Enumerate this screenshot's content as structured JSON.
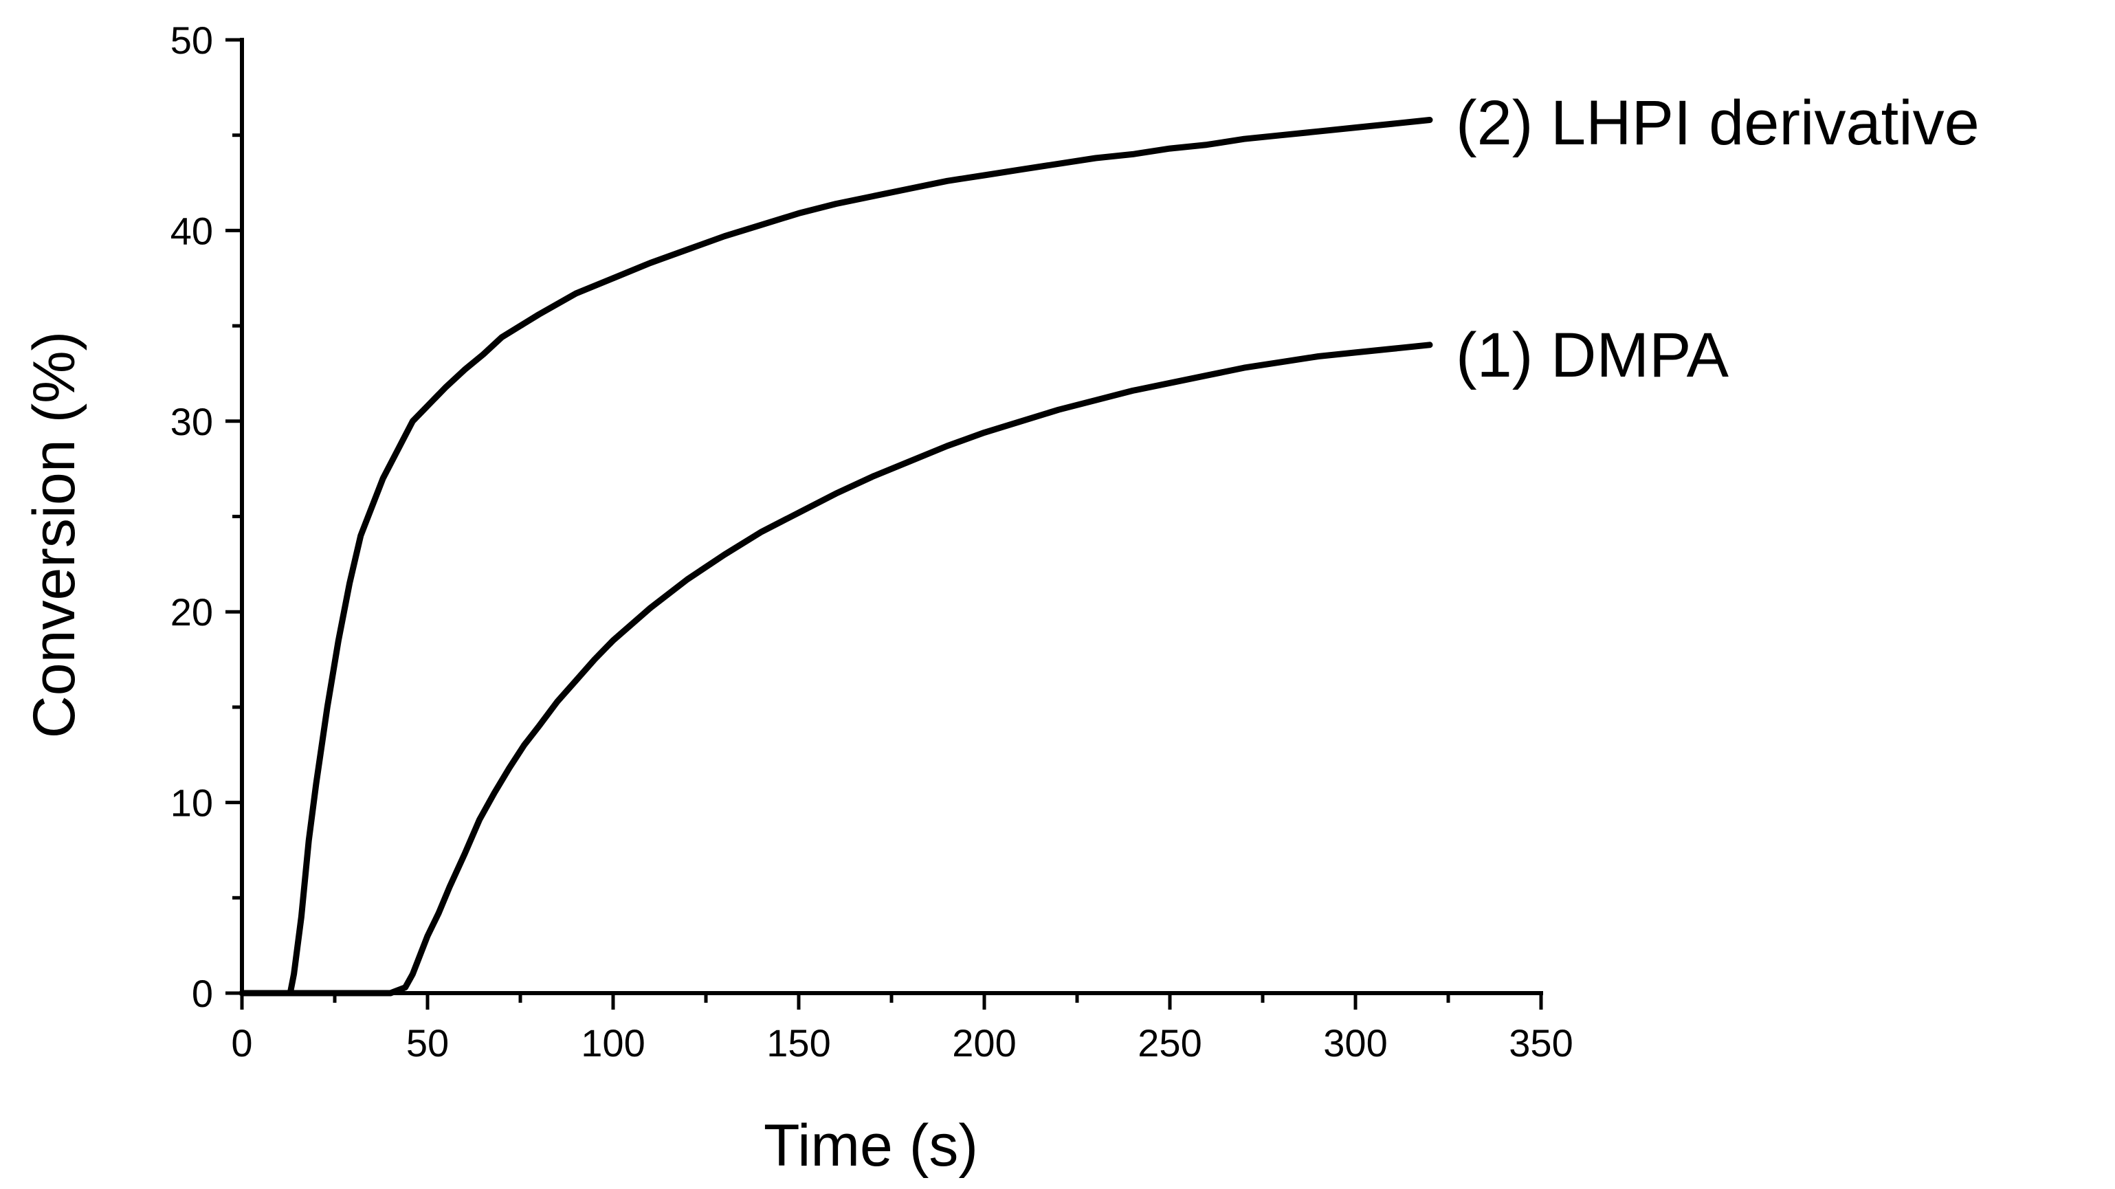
{
  "chart_data": {
    "type": "line",
    "title": "",
    "xlabel": "Time (s)",
    "ylabel": "Conversion (%)",
    "xlim": [
      0,
      350
    ],
    "ylim": [
      0,
      50
    ],
    "x_major_ticks": [
      0,
      50,
      100,
      150,
      200,
      250,
      300,
      350
    ],
    "x_tick_labels": [
      "0",
      "50",
      "100",
      "150",
      "200",
      "250",
      "300",
      "350"
    ],
    "x_minor_step": 25,
    "y_major_ticks": [
      0,
      10,
      20,
      30,
      40,
      50
    ],
    "y_tick_labels": [
      "0",
      "10",
      "20",
      "30",
      "40",
      "50"
    ],
    "y_minor_step": 5,
    "grid": false,
    "legend": "inline labels at right end of each series",
    "series": [
      {
        "name": "(2) LHPI derivative",
        "color": "#000000",
        "x": [
          0,
          5,
          10,
          13,
          14,
          16,
          18,
          20,
          23,
          26,
          29,
          32,
          35,
          38,
          42,
          46,
          50,
          55,
          60,
          65,
          70,
          75,
          80,
          90,
          100,
          110,
          120,
          130,
          140,
          150,
          160,
          170,
          180,
          190,
          200,
          210,
          220,
          230,
          240,
          250,
          260,
          270,
          280,
          290,
          300,
          310,
          320
        ],
        "y": [
          0,
          0,
          0,
          0,
          1,
          4,
          8,
          11,
          15,
          18.5,
          21.5,
          24,
          25.5,
          27,
          28.5,
          30,
          30.8,
          31.8,
          32.7,
          33.5,
          34.4,
          35,
          35.6,
          36.7,
          37.5,
          38.3,
          39,
          39.7,
          40.3,
          40.9,
          41.4,
          41.8,
          42.2,
          42.6,
          42.9,
          43.2,
          43.5,
          43.8,
          44,
          44.3,
          44.5,
          44.8,
          45,
          45.2,
          45.4,
          45.6,
          45.8
        ]
      },
      {
        "name": "(1) DMPA",
        "color": "#000000",
        "x": [
          0,
          20,
          40,
          44,
          46,
          48,
          50,
          53,
          56,
          60,
          64,
          68,
          72,
          76,
          80,
          85,
          90,
          95,
          100,
          110,
          120,
          130,
          140,
          150,
          160,
          170,
          180,
          190,
          200,
          210,
          220,
          230,
          240,
          250,
          260,
          270,
          280,
          290,
          300,
          310,
          320
        ],
        "y": [
          0,
          0,
          0,
          0.3,
          1,
          2,
          3,
          4.2,
          5.6,
          7.3,
          9.1,
          10.5,
          11.8,
          13,
          14,
          15.3,
          16.4,
          17.5,
          18.5,
          20.2,
          21.7,
          23,
          24.2,
          25.2,
          26.2,
          27.1,
          27.9,
          28.7,
          29.4,
          30,
          30.6,
          31.1,
          31.6,
          32,
          32.4,
          32.8,
          33.1,
          33.4,
          33.6,
          33.8,
          34
        ]
      }
    ]
  }
}
